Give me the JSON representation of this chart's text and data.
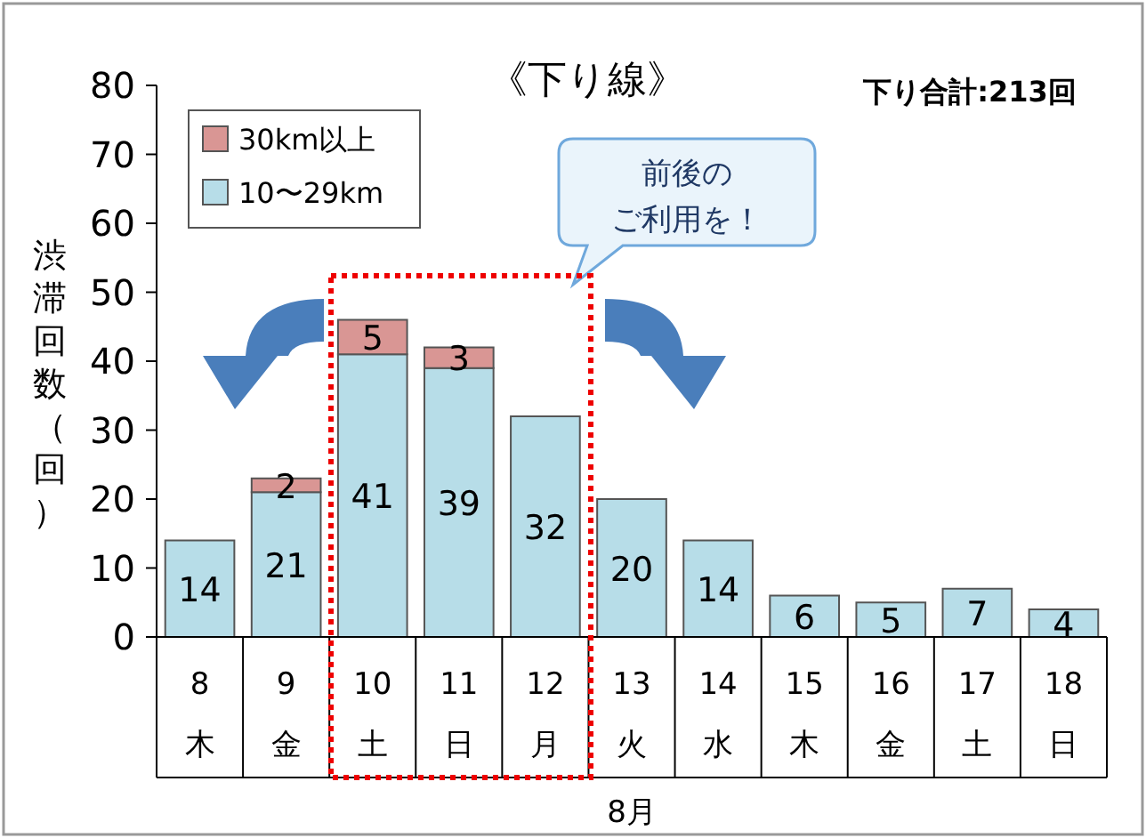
{
  "chart_data": {
    "type": "bar",
    "title": "《下り線》",
    "ylabel": "渋滞回数（回）",
    "xlabel": "8月",
    "annotations": [
      "下り合計:213回",
      "前後の",
      "ご利用を！"
    ],
    "categories": [
      "8\n木",
      "9\n金",
      "10\n土",
      "11\n日",
      "12\n月",
      "13\n火",
      "14\n水",
      "15\n木",
      "16\n金",
      "17\n土",
      "18\n日"
    ],
    "series": [
      {
        "name": "10〜29km",
        "color": "#b7dde8",
        "values": [
          14,
          21,
          41,
          39,
          32,
          20,
          14,
          6,
          5,
          7,
          4
        ]
      },
      {
        "name": "30km以上",
        "color": "#d99694",
        "values": [
          null,
          2,
          5,
          3,
          null,
          null,
          null,
          null,
          null,
          null,
          null
        ]
      }
    ],
    "stacked": true,
    "data_labels": true,
    "ylim": [
      0,
      80
    ],
    "yticks": [
      0,
      10,
      20,
      30,
      40,
      50,
      60,
      70,
      80
    ],
    "grid": false,
    "legend": "top left"
  }
}
